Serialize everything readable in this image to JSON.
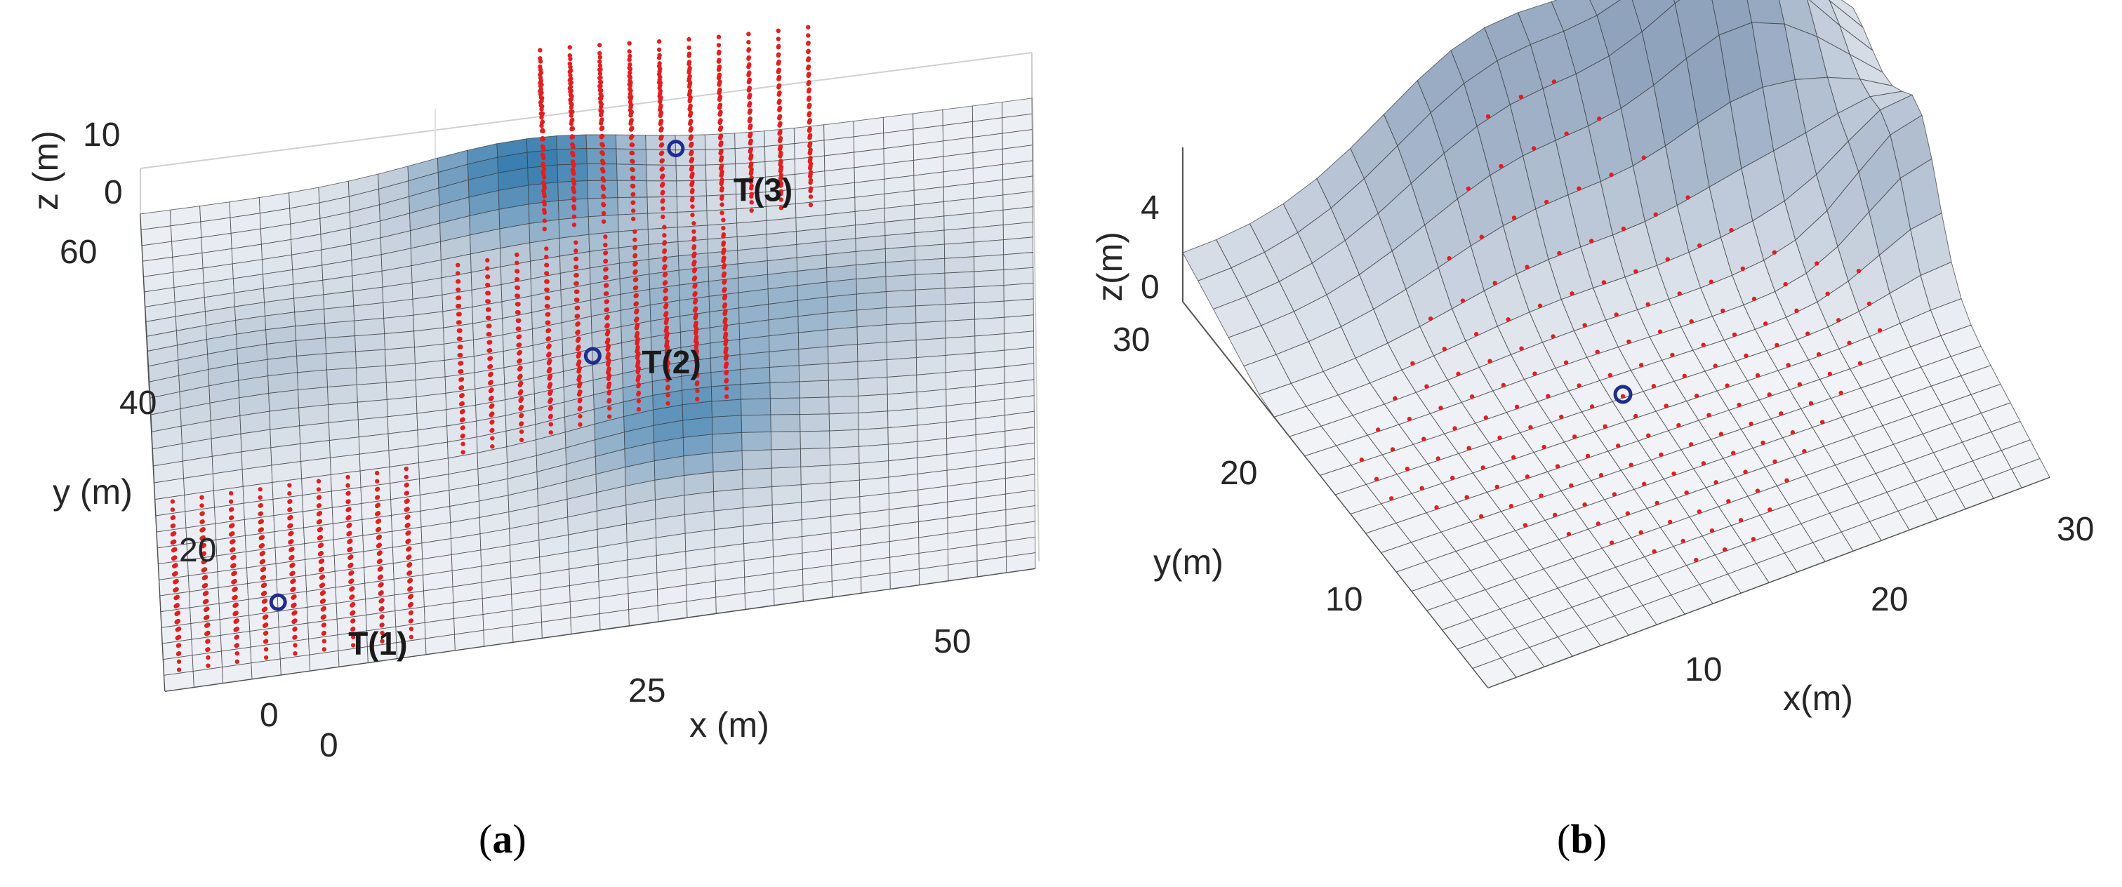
{
  "chart_data": [
    {
      "type": "surface3d",
      "panel_label": "a",
      "xlabel": "x (m)",
      "ylabel": "y (m)",
      "zlabel": "z (m)",
      "xlim": [
        0,
        60
      ],
      "ylim": [
        0,
        60
      ],
      "zlim": [
        0,
        10
      ],
      "x_ticks": [
        "0",
        "25",
        "50"
      ],
      "y_ticks": [
        "0",
        "20",
        "40",
        "60"
      ],
      "z_ticks": [
        "0",
        "10"
      ],
      "grid": true,
      "surface_color": "#b9c7d6",
      "peak_color": "#3a7fb0",
      "hills": [
        {
          "x": 26,
          "y": 57,
          "height": 6
        },
        {
          "x": 34,
          "y": 40,
          "height": 3
        },
        {
          "x": 36,
          "y": 22,
          "height": 5
        },
        {
          "x": 8,
          "y": 38,
          "height": 3
        },
        {
          "x": 48,
          "y": 36,
          "height": 3
        }
      ],
      "targets": [
        {
          "label": "T(1)",
          "x": 8,
          "y": 8
        },
        {
          "label": "T(2)",
          "x": 30,
          "y": 32
        },
        {
          "label": "T(3)",
          "x": 36,
          "y": 57
        }
      ],
      "target_color": "#1f2d8c",
      "point_color": "#e02020"
    },
    {
      "type": "surface3d",
      "panel_label": "b",
      "xlabel": "x(m)",
      "ylabel": "y(m)",
      "zlabel": "z(m)",
      "xlim": [
        0,
        30
      ],
      "ylim": [
        0,
        30
      ],
      "zlim": [
        0,
        4
      ],
      "x_ticks": [
        "10",
        "20",
        "30"
      ],
      "y_ticks": [
        "10",
        "20",
        "30"
      ],
      "z_ticks": [
        "0",
        "4"
      ],
      "grid": true,
      "surface_color": "#c3cedb",
      "targets": [
        {
          "label": "",
          "x": 14,
          "y": 15
        }
      ],
      "target_color": "#1f2d8c",
      "point_color": "#e02020"
    }
  ]
}
